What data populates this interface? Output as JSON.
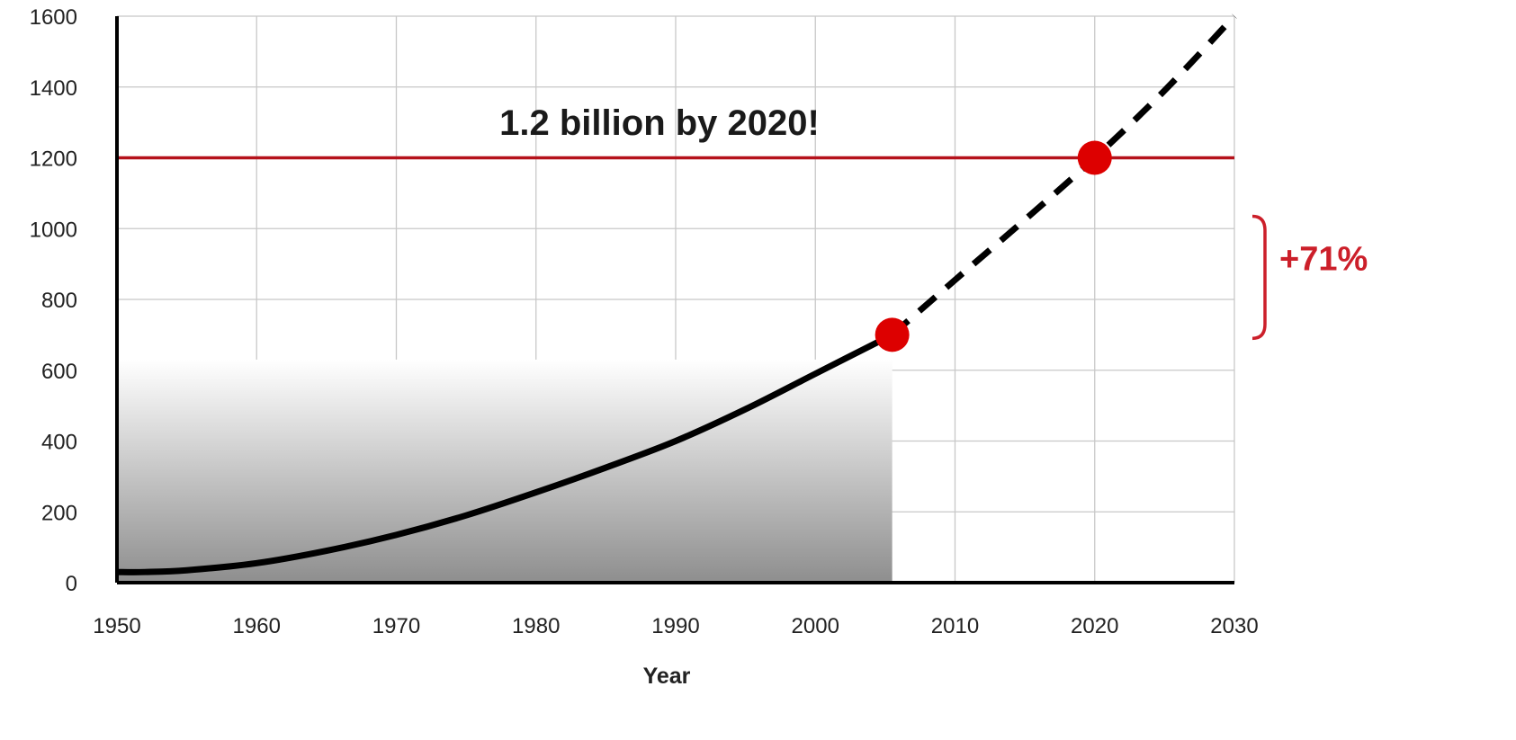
{
  "chart_data": {
    "type": "line",
    "title": "",
    "xlabel": "Year",
    "ylabel": "",
    "xlim": [
      1950,
      2030
    ],
    "ylim": [
      0,
      1600
    ],
    "grid": true,
    "x_ticks": [
      1950,
      1960,
      1970,
      1980,
      1990,
      2000,
      2010,
      2020,
      2030
    ],
    "y_ticks": [
      0,
      200,
      400,
      600,
      800,
      1000,
      1200,
      1400,
      1600
    ],
    "series": [
      {
        "style": "solid",
        "color": "#000000",
        "x": [
          1950,
          1952,
          1955,
          1960,
          1965,
          1970,
          1975,
          1980,
          1985,
          1990,
          1995,
          2000,
          2005.5
        ],
        "y": [
          30,
          30,
          35,
          55,
          90,
          135,
          190,
          255,
          325,
          400,
          490,
          590,
          700
        ],
        "shaded_area": true
      },
      {
        "style": "dashed",
        "color": "#000000",
        "x": [
          2005.5,
          2010,
          2015,
          2020,
          2025,
          2030
        ],
        "y": [
          700,
          855,
          1025,
          1200,
          1390,
          1600
        ]
      }
    ],
    "highlight_points": [
      {
        "x": 2005.5,
        "y": 700,
        "color": "#dd0000"
      },
      {
        "x": 2020,
        "y": 1200,
        "color": "#dd0000"
      }
    ],
    "reference_line": {
      "y": 1200,
      "color": "#b5121b"
    },
    "annotations": {
      "title_text": "1.2 billion by 2020!",
      "bracket_text": "+71%",
      "bracket_range": [
        700,
        1200
      ],
      "accent_color": "#cc1f2a"
    }
  }
}
